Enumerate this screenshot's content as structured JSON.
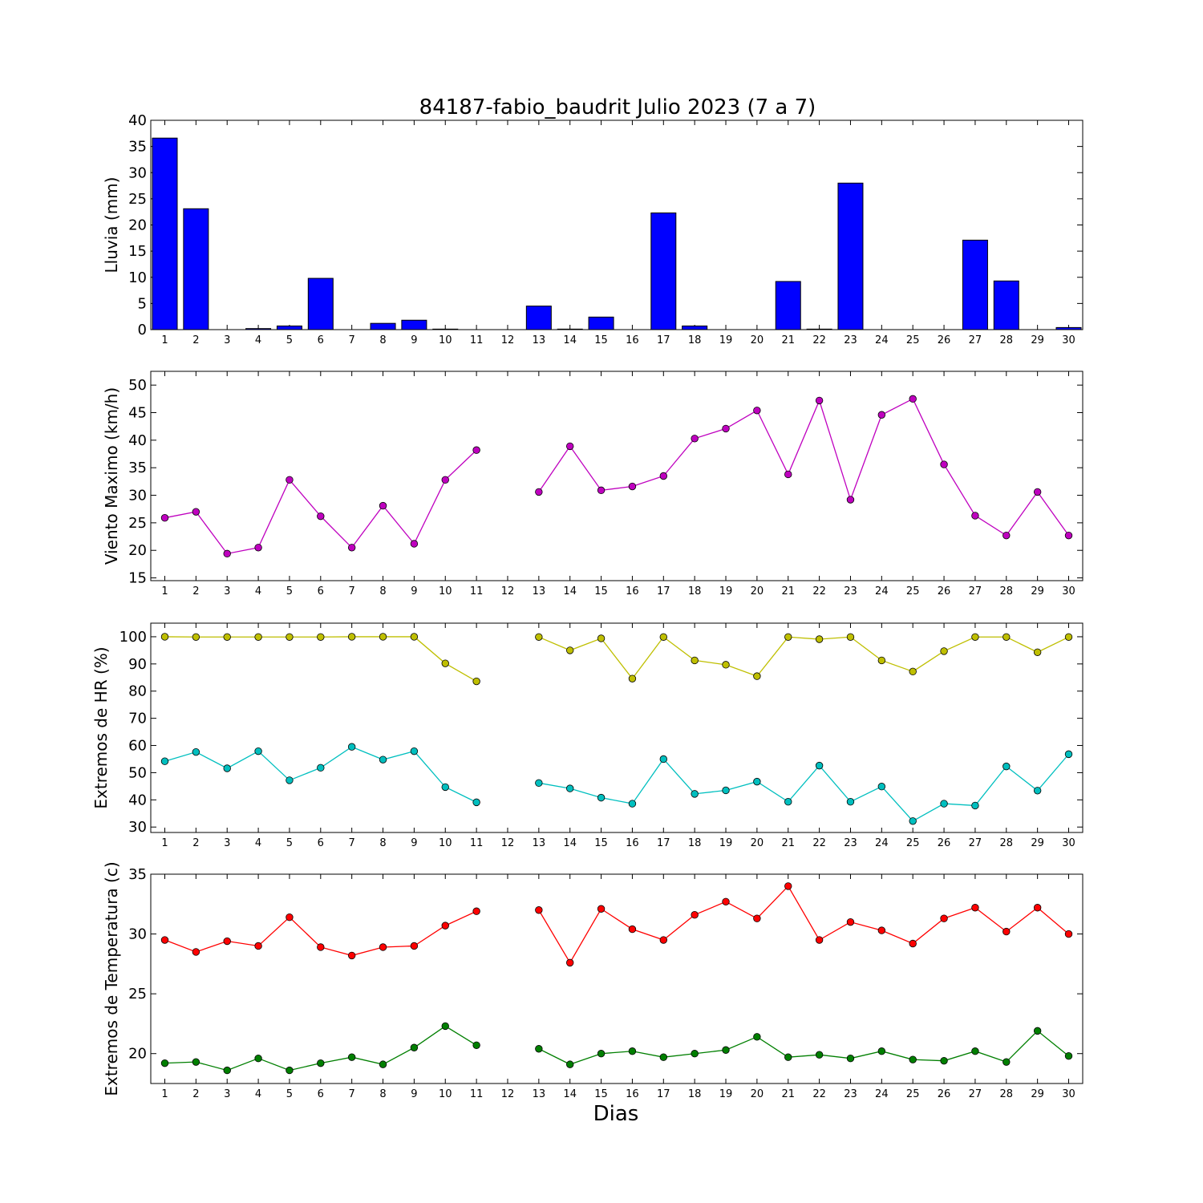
{
  "title": "84187-fabio_baudrit Julio 2023  (7 a 7)",
  "xlabel": "Dias",
  "chart_data": [
    {
      "type": "bar",
      "ylabel": "Lluvia (mm)",
      "ylim": [
        0,
        40
      ],
      "yticks": [
        0,
        5,
        10,
        15,
        20,
        25,
        30,
        35,
        40
      ],
      "x": [
        1,
        2,
        3,
        4,
        5,
        6,
        7,
        8,
        9,
        10,
        11,
        12,
        13,
        14,
        15,
        16,
        17,
        18,
        19,
        20,
        21,
        22,
        23,
        24,
        25,
        26,
        27,
        28,
        29,
        30
      ],
      "series": [
        {
          "color": "#0000ff",
          "values": [
            36.6,
            23.1,
            0.0,
            0.2,
            0.7,
            9.8,
            0.0,
            1.2,
            1.8,
            0.1,
            0.0,
            null,
            4.5,
            0.1,
            2.4,
            0.0,
            22.3,
            0.7,
            0.0,
            0.0,
            9.2,
            0.1,
            28.0,
            0.0,
            0.0,
            0.0,
            17.1,
            9.3,
            0.0,
            0.4
          ]
        }
      ]
    },
    {
      "type": "line",
      "ylabel": "Viento Maximo (km/h)",
      "ylim": [
        14.5,
        52.5
      ],
      "yticks": [
        15,
        20,
        25,
        30,
        35,
        40,
        45,
        50
      ],
      "x": [
        1,
        2,
        3,
        4,
        5,
        6,
        7,
        8,
        9,
        10,
        11,
        12,
        13,
        14,
        15,
        16,
        17,
        18,
        19,
        20,
        21,
        22,
        23,
        24,
        25,
        26,
        27,
        28,
        29,
        30
      ],
      "series": [
        {
          "color": "#bf00bf",
          "values": [
            25.9,
            27.0,
            19.4,
            20.5,
            32.8,
            26.2,
            20.5,
            28.1,
            21.2,
            32.8,
            38.2,
            null,
            30.6,
            38.9,
            30.9,
            31.6,
            33.5,
            40.3,
            42.1,
            45.4,
            33.8,
            47.2,
            29.2,
            44.6,
            47.5,
            35.6,
            26.3,
            22.7,
            30.6,
            22.7
          ]
        }
      ]
    },
    {
      "type": "line",
      "ylabel": "Extremos de HR (%)",
      "ylim": [
        28,
        105
      ],
      "yticks": [
        30,
        40,
        50,
        60,
        70,
        80,
        90,
        100
      ],
      "x": [
        1,
        2,
        3,
        4,
        5,
        6,
        7,
        8,
        9,
        10,
        11,
        12,
        13,
        14,
        15,
        16,
        17,
        18,
        19,
        20,
        21,
        22,
        23,
        24,
        25,
        26,
        27,
        28,
        29,
        30
      ],
      "series": [
        {
          "color": "#bfbf00",
          "values": [
            100,
            99.9,
            99.9,
            99.9,
            99.9,
            99.9,
            100,
            100,
            100,
            90.2,
            83.6,
            null,
            99.9,
            95.0,
            99.4,
            84.6,
            99.9,
            91.3,
            89.7,
            85.5,
            99.9,
            99.1,
            99.9,
            91.3,
            87.2,
            94.7,
            99.9,
            99.9,
            94.3,
            99.9
          ]
        },
        {
          "color": "#00bfbf",
          "values": [
            54.2,
            57.6,
            51.6,
            57.9,
            47.2,
            51.8,
            59.5,
            54.8,
            57.9,
            44.7,
            39.1,
            null,
            46.2,
            44.2,
            40.8,
            38.6,
            55.0,
            42.2,
            43.5,
            46.7,
            39.3,
            52.6,
            39.3,
            44.9,
            32.2,
            38.6,
            37.9,
            52.3,
            43.4,
            56.8
          ]
        }
      ]
    },
    {
      "type": "line",
      "ylabel": "Extremos de Temperatura (c)",
      "ylim": [
        17.5,
        35
      ],
      "yticks": [
        20,
        25,
        30,
        35
      ],
      "x": [
        1,
        2,
        3,
        4,
        5,
        6,
        7,
        8,
        9,
        10,
        11,
        12,
        13,
        14,
        15,
        16,
        17,
        18,
        19,
        20,
        21,
        22,
        23,
        24,
        25,
        26,
        27,
        28,
        29,
        30
      ],
      "series": [
        {
          "color": "#ff0000",
          "values": [
            29.5,
            28.5,
            29.4,
            29.0,
            31.4,
            28.9,
            28.2,
            28.9,
            29.0,
            30.7,
            31.9,
            null,
            32.0,
            27.6,
            32.1,
            30.4,
            29.5,
            31.6,
            32.7,
            31.3,
            34.0,
            29.5,
            31.0,
            30.3,
            29.2,
            31.3,
            32.2,
            30.2,
            32.2,
            30.0
          ]
        },
        {
          "color": "#007f00",
          "values": [
            19.2,
            19.3,
            18.6,
            19.6,
            18.6,
            19.2,
            19.7,
            19.1,
            20.5,
            22.3,
            20.7,
            null,
            20.4,
            19.1,
            20.0,
            20.2,
            19.7,
            20.0,
            20.3,
            21.4,
            19.7,
            19.9,
            19.6,
            20.2,
            19.5,
            19.4,
            20.2,
            19.3,
            21.9,
            19.8
          ]
        }
      ]
    }
  ]
}
